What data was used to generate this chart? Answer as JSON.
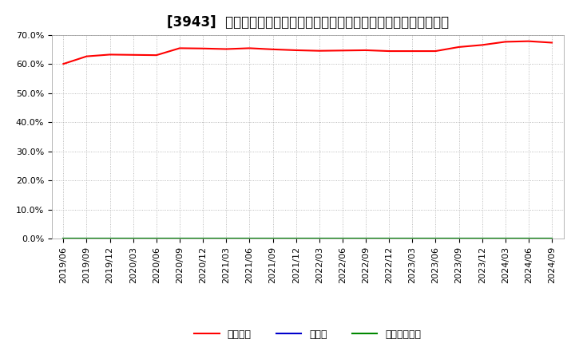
{
  "title": "[3943]  自己資本、のれん、繰延税金資産の総資産に対する比率の推移",
  "ylim": [
    0.0,
    0.7
  ],
  "yticks": [
    0.0,
    0.1,
    0.2,
    0.3,
    0.4,
    0.5,
    0.6,
    0.7
  ],
  "ytick_labels": [
    "0.0%",
    "10.0%",
    "20.0%",
    "30.0%",
    "40.0%",
    "50.0%",
    "60.0%",
    "70.0%"
  ],
  "x_labels": [
    "2019/06",
    "2019/09",
    "2019/12",
    "2020/03",
    "2020/06",
    "2020/09",
    "2020/12",
    "2021/03",
    "2021/06",
    "2021/09",
    "2021/12",
    "2022/03",
    "2022/06",
    "2022/09",
    "2022/12",
    "2023/03",
    "2023/06",
    "2023/09",
    "2023/12",
    "2024/03",
    "2024/06",
    "2024/09"
  ],
  "jikoshihon": [
    0.601,
    0.627,
    0.633,
    0.632,
    0.631,
    0.655,
    0.654,
    0.652,
    0.655,
    0.651,
    0.648,
    0.646,
    0.647,
    0.648,
    0.645,
    0.645,
    0.645,
    0.659,
    0.666,
    0.677,
    0.679,
    0.674
  ],
  "noren": [
    0.0,
    0.0,
    0.0,
    0.0,
    0.0,
    0.0,
    0.0,
    0.0,
    0.0,
    0.0,
    0.0,
    0.0,
    0.0,
    0.0,
    0.0,
    0.0,
    0.0,
    0.0,
    0.0,
    0.0,
    0.0,
    0.0
  ],
  "kurinobe": [
    0.0,
    0.0,
    0.0,
    0.0,
    0.0,
    0.0,
    0.0,
    0.0,
    0.0,
    0.0,
    0.0,
    0.0,
    0.0,
    0.0,
    0.0,
    0.0,
    0.0,
    0.0,
    0.0,
    0.0,
    0.0,
    0.0
  ],
  "jikoshihon_color": "#ff0000",
  "noren_color": "#0000cc",
  "kurinobe_color": "#008800",
  "background_color": "#ffffff",
  "grid_color": "#aaaaaa",
  "legend_labels": [
    "自己資本",
    "のれん",
    "繰延税金資産"
  ],
  "title_fontsize": 12,
  "tick_fontsize": 8,
  "legend_fontsize": 9
}
